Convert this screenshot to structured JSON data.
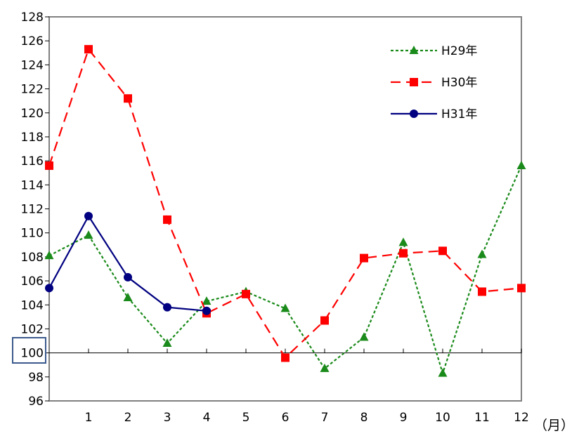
{
  "chart_data": {
    "type": "line",
    "title": "",
    "xlabel": "",
    "ylabel": "",
    "x_unit_label": "（月）",
    "x": [
      0,
      1,
      2,
      3,
      4,
      5,
      6,
      7,
      8,
      9,
      10,
      11,
      12
    ],
    "x_tick_labels": [
      "1",
      "2",
      "3",
      "4",
      "5",
      "6",
      "7",
      "8",
      "9",
      "10",
      "11",
      "12"
    ],
    "ylim": [
      96,
      128
    ],
    "y_ticks": [
      96,
      98,
      100,
      102,
      104,
      106,
      108,
      110,
      112,
      114,
      116,
      118,
      120,
      122,
      124,
      126,
      128
    ],
    "y_tick_labels": [
      "96",
      "98",
      "100",
      "102",
      "104",
      "106",
      "108",
      "110",
      "112",
      "114",
      "116",
      "118",
      "120",
      "122",
      "124",
      "126",
      "128"
    ],
    "reference_line": 100,
    "grid": false,
    "legend_position": "top-right",
    "series": [
      {
        "name": "H29年",
        "color": "#1a8a1a",
        "dash": "dotted",
        "marker": "triangle",
        "values": [
          108.1,
          109.8,
          104.6,
          100.8,
          104.3,
          105.1,
          103.7,
          98.7,
          101.3,
          109.2,
          98.3,
          108.2,
          115.6
        ]
      },
      {
        "name": "H30年",
        "color": "#ff0000",
        "dash": "dashed",
        "marker": "square",
        "values": [
          115.6,
          125.3,
          121.2,
          111.1,
          103.3,
          104.9,
          99.6,
          102.7,
          107.9,
          108.3,
          108.5,
          105.1,
          105.4
        ]
      },
      {
        "name": "H31年",
        "color": "#000080",
        "dash": "solid",
        "marker": "circle",
        "values": [
          105.4,
          111.4,
          106.3,
          103.8,
          103.5,
          null,
          null,
          null,
          null,
          null,
          null,
          null,
          null
        ]
      }
    ]
  }
}
